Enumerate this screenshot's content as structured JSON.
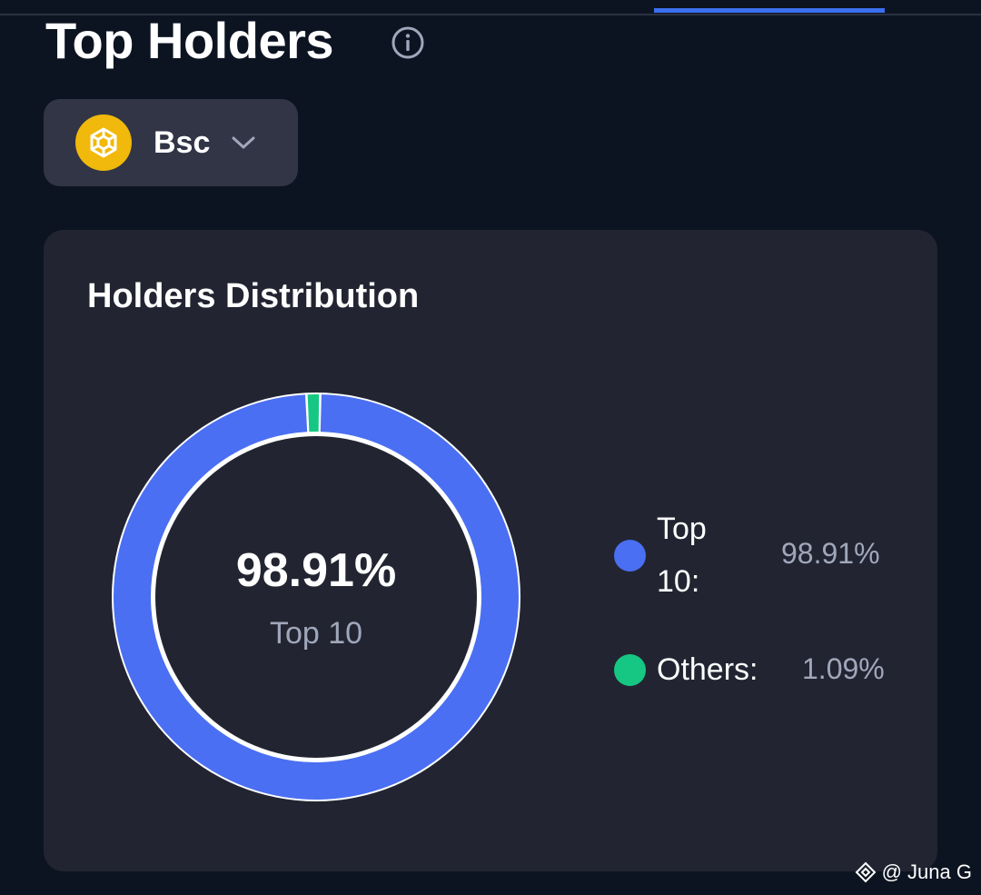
{
  "header": {
    "title": "Top Holders",
    "info_icon": "info-circle-icon"
  },
  "chain_selector": {
    "label": "Bsc",
    "logo_icon": "bnb-chain-logo",
    "dropdown_icon": "chevron-down-icon"
  },
  "distribution": {
    "title": "Holders Distribution",
    "center_value": "98.91%",
    "center_label": "Top 10",
    "legend": [
      {
        "name_line1": "Top",
        "name_line2": "10:",
        "value": "98.91%",
        "color": "#4a6ff2"
      },
      {
        "name": "Others:",
        "value": "1.09%",
        "color": "#16c784"
      }
    ]
  },
  "chart_data": {
    "type": "pie",
    "variant": "donut",
    "categories": [
      "Top 10",
      "Others"
    ],
    "values": [
      98.91,
      1.09
    ],
    "colors": [
      "#4a6ff2",
      "#16c784"
    ]
  },
  "watermark": {
    "text": "@ Juna G",
    "icon": "binance-square-icon"
  },
  "colors": {
    "background": "#0d1421",
    "card": "#222531",
    "selector": "#323546",
    "accent": "#3b6ff0"
  }
}
